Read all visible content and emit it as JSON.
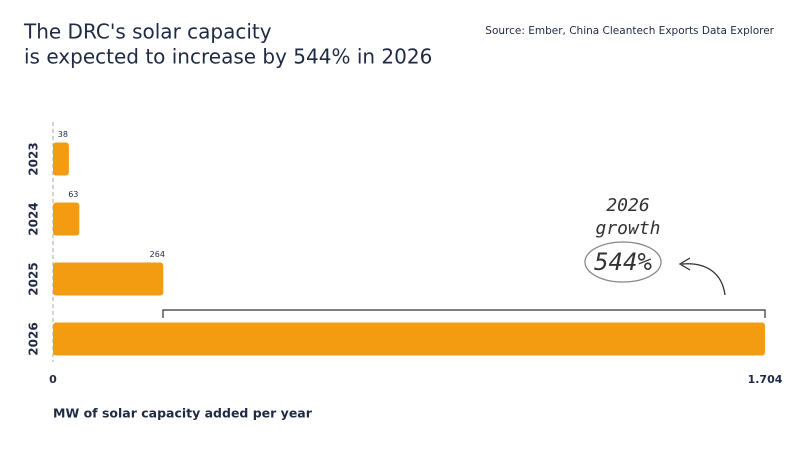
{
  "chart_data": {
    "type": "hbar",
    "title": [
      "The DRC's solar capacity",
      "is expected to increase by 544% in 2026"
    ],
    "source": "Source: Ember, China Cleantech Exports Data Explorer",
    "x_label": "MW of solar capacity added per year",
    "categories": [
      "2023",
      "2024",
      "2025",
      "2026"
    ],
    "values": [
      38,
      63,
      264,
      1704
    ],
    "data_labels": [
      true,
      true,
      true,
      false
    ],
    "color": "#f39c12",
    "xlim": [
      0,
      1704
    ],
    "xticks": [
      0,
      {
        "value": 1704,
        "label": "1.704"
      }
    ],
    "annotation": [
      "2026",
      "growth"
    ],
    "annotation_value": "544%"
  }
}
